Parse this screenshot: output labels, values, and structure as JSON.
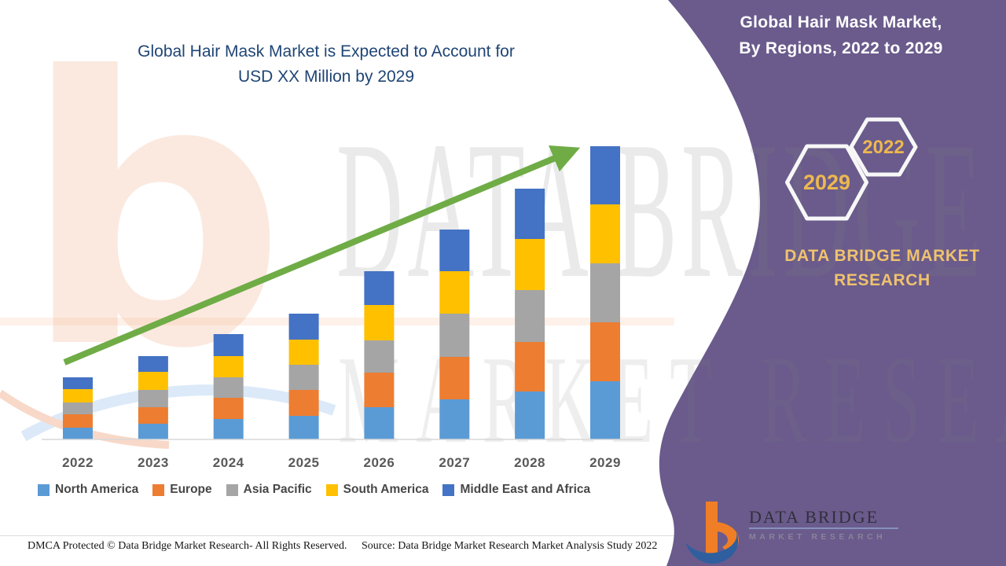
{
  "title": {
    "line1": "Global Hair Mask Market is Expected to Account for",
    "line2": "USD XX Million by 2029"
  },
  "panel": {
    "title_line1": "Global Hair Mask Market,",
    "title_line2": "By Regions, 2022 to 2029",
    "hexagons": [
      {
        "label": "2029"
      },
      {
        "label": "2022"
      }
    ],
    "brand_line1": "DATA BRIDGE MARKET",
    "brand_line2": "RESEARCH",
    "colors": {
      "background": "#6A5B8C",
      "hexagon_stroke": "#F7F7F7",
      "accent_gold": "#EFC26E",
      "hexagon_year_gold": "#EDB84F"
    }
  },
  "watermark": {
    "word1": "DATA BRIDGE",
    "word2": "MARKET RESEARCH"
  },
  "logo": {
    "name": "DATA BRIDGE",
    "subtitle": "MARKET RESEARCH"
  },
  "footer": {
    "left": "DMCA Protected © Data Bridge Market Research- All Rights Reserved.",
    "right": "Source: Data Bridge Market Research Market Analysis Study 2022"
  },
  "chart_data": {
    "type": "bar",
    "stacked": true,
    "title": "Global Hair Mask Market, By Regions, 2022 to 2029",
    "categories": [
      "2022",
      "2023",
      "2024",
      "2025",
      "2026",
      "2027",
      "2028",
      "2029"
    ],
    "series": [
      {
        "name": "North America",
        "color": "#5B9BD5",
        "values": [
          15,
          20,
          26,
          30,
          41,
          51,
          61,
          74
        ]
      },
      {
        "name": "Europe",
        "color": "#ED7D31",
        "values": [
          17,
          21,
          27,
          33,
          44,
          54,
          63,
          75
        ]
      },
      {
        "name": "Asia Pacific",
        "color": "#A5A5A5",
        "values": [
          15,
          22,
          26,
          32,
          41,
          55,
          66,
          75
        ]
      },
      {
        "name": "South America",
        "color": "#FFC000",
        "values": [
          17,
          23,
          27,
          32,
          45,
          54,
          65,
          75
        ]
      },
      {
        "name": "Middle East and Africa",
        "color": "#4472C4",
        "values": [
          15,
          20,
          28,
          33,
          43,
          53,
          64,
          74
        ]
      }
    ],
    "totals_relative": [
      79,
      106,
      134,
      160,
      214,
      267,
      319,
      373
    ],
    "value_labels_shown": false,
    "value_axis_shown": false,
    "units_note": "Actual values masked in source as USD XX Million; series values are relative stacked-segment heights",
    "xlabel": "",
    "ylabel": "",
    "gridlines": false,
    "legend_position": "bottom",
    "trend_arrow": {
      "present": true,
      "color": "#6FAC46",
      "direction": "up-right"
    }
  }
}
